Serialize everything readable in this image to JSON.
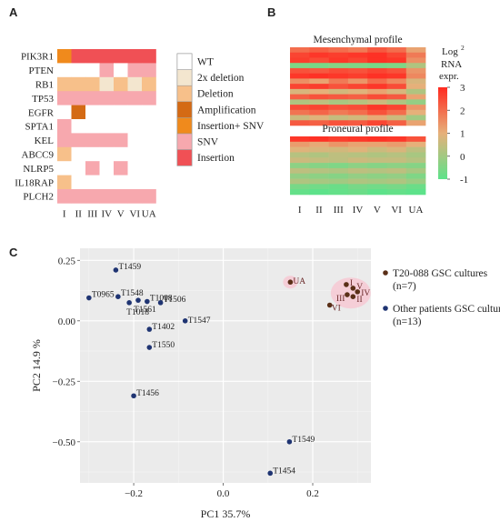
{
  "panels": {
    "a": "A",
    "b": "B",
    "c": "C"
  },
  "chart_data": [
    {
      "type": "heatmap",
      "panel": "A",
      "columns": [
        "I",
        "II",
        "III",
        "IV",
        "V",
        "VI",
        "UA"
      ],
      "rows": [
        "PIK3R1",
        "PTEN",
        "RB1",
        "TP53",
        "EGFR",
        "SPTA1",
        "KEL",
        "ABCC9",
        "NLRP5",
        "IL18RAP",
        "PLCH2"
      ],
      "legend": [
        {
          "key": "wt",
          "label": "WT",
          "color": "#ffffff"
        },
        {
          "key": "dd",
          "label": "2x deletion",
          "color": "#f3e6cf"
        },
        {
          "key": "del",
          "label": "Deletion",
          "color": "#f7c08a"
        },
        {
          "key": "amp",
          "label": "Amplification",
          "color": "#d46a14"
        },
        {
          "key": "ins_snv",
          "label": "Insertion+ SNV",
          "color": "#f08a1c"
        },
        {
          "key": "snv",
          "label": "SNV",
          "color": "#f7a8ae"
        },
        {
          "key": "ins",
          "label": "Insertion",
          "color": "#f05055"
        }
      ],
      "cells": [
        [
          "ins_snv",
          "ins",
          "ins",
          "ins",
          "ins",
          "ins",
          "ins"
        ],
        [
          "wt",
          "wt",
          "wt",
          "snv",
          "wt",
          "snv",
          "snv"
        ],
        [
          "del",
          "del",
          "del",
          "dd",
          "del",
          "dd",
          "del"
        ],
        [
          "snv",
          "snv",
          "snv",
          "snv",
          "snv",
          "snv",
          "snv"
        ],
        [
          "wt",
          "amp",
          "wt",
          "wt",
          "wt",
          "wt",
          "wt"
        ],
        [
          "snv",
          "wt",
          "wt",
          "wt",
          "wt",
          "wt",
          "wt"
        ],
        [
          "snv",
          "snv",
          "snv",
          "snv",
          "snv",
          "wt",
          "wt"
        ],
        [
          "del",
          "wt",
          "wt",
          "wt",
          "wt",
          "wt",
          "wt"
        ],
        [
          "wt",
          "wt",
          "snv",
          "wt",
          "snv",
          "wt",
          "wt"
        ],
        [
          "del",
          "wt",
          "wt",
          "wt",
          "wt",
          "wt",
          "wt"
        ],
        [
          "snv",
          "snv",
          "snv",
          "snv",
          "snv",
          "snv",
          "snv"
        ]
      ]
    },
    {
      "type": "heatmap",
      "panel": "B",
      "columns": [
        "I",
        "II",
        "III",
        "IV",
        "V",
        "VI",
        "UA"
      ],
      "blocks": [
        {
          "title": "Mesenchymal profile",
          "values": [
            [
              2.0,
              2.2,
              2.0,
              1.8,
              2.3,
              2.0,
              1.2
            ],
            [
              2.6,
              2.8,
              2.7,
              2.8,
              2.9,
              2.6,
              1.8
            ],
            [
              2.7,
              2.5,
              2.8,
              2.6,
              2.9,
              2.8,
              1.5
            ],
            [
              -0.5,
              -0.6,
              -0.4,
              -0.5,
              -0.6,
              -0.5,
              0.2
            ],
            [
              2.4,
              2.3,
              2.5,
              2.4,
              2.6,
              2.4,
              1.4
            ],
            [
              2.8,
              2.9,
              2.8,
              2.7,
              2.9,
              2.8,
              1.6
            ],
            [
              1.5,
              1.2,
              1.8,
              1.4,
              2.0,
              1.6,
              0.8
            ],
            [
              2.6,
              2.7,
              2.4,
              2.6,
              2.8,
              2.5,
              1.0
            ],
            [
              0.8,
              1.0,
              0.7,
              0.9,
              1.2,
              0.8,
              0.2
            ],
            [
              2.2,
              2.4,
              2.3,
              2.2,
              2.5,
              2.3,
              1.2
            ],
            [
              0.2,
              0.4,
              0.1,
              0.3,
              0.6,
              0.2,
              -0.2
            ],
            [
              2.5,
              2.6,
              2.4,
              2.5,
              2.8,
              2.6,
              1.4
            ],
            [
              1.9,
              2.1,
              1.8,
              2.0,
              2.4,
              2.0,
              1.0
            ],
            [
              0.6,
              0.9,
              0.5,
              0.7,
              1.1,
              0.6,
              0.0
            ],
            [
              2.3,
              2.2,
              2.4,
              2.3,
              2.6,
              2.2,
              1.2
            ]
          ]
        },
        {
          "title": "Proneural profile",
          "values": [
            [
              2.8,
              2.9,
              2.7,
              2.8,
              2.9,
              2.8,
              2.4
            ],
            [
              1.3,
              1.1,
              1.4,
              1.2,
              1.2,
              1.3,
              1.0
            ],
            [
              0.9,
              0.8,
              0.7,
              0.9,
              0.6,
              0.8,
              0.4
            ],
            [
              0.3,
              0.2,
              0.4,
              0.3,
              0.2,
              0.3,
              0.1
            ],
            [
              0.6,
              0.5,
              0.4,
              0.6,
              0.5,
              0.5,
              0.3
            ],
            [
              -0.3,
              -0.4,
              -0.5,
              -0.3,
              -0.4,
              -0.3,
              -0.4
            ],
            [
              0.4,
              0.3,
              0.2,
              0.4,
              0.3,
              0.4,
              0.1
            ],
            [
              -0.2,
              -0.3,
              -0.4,
              -0.2,
              -0.3,
              -0.2,
              -0.5
            ],
            [
              0.2,
              0.1,
              0.0,
              0.2,
              0.1,
              0.2,
              -0.1
            ],
            [
              -0.6,
              -0.7,
              -0.8,
              -0.6,
              -0.7,
              -0.6,
              -0.8
            ],
            [
              -0.9,
              -1.0,
              -0.9,
              -0.8,
              -1.0,
              -0.9,
              -1.0
            ]
          ]
        }
      ],
      "colorbar": {
        "title": [
          "Log",
          "2",
          "RNA",
          "expr."
        ],
        "ticks": [
          3,
          2,
          1,
          0,
          -1
        ],
        "range": [
          -1,
          3
        ],
        "colors": [
          "#5de28a",
          "#e6b07a",
          "#ff2a20"
        ]
      }
    },
    {
      "type": "scatter",
      "panel": "C",
      "xlabel": "PC1 35.7%",
      "ylabel": "PC2 14.9 %",
      "xlim": [
        -0.32,
        0.33
      ],
      "ylim": [
        -0.67,
        0.3
      ],
      "xticks": [
        -0.2,
        0.0,
        0.2
      ],
      "xtick_labels": [
        "−0.2",
        "0.0",
        "0.2"
      ],
      "yticks": [
        0.25,
        0.0,
        -0.25,
        -0.5
      ],
      "ytick_labels": [
        "0.25",
        "0.00",
        "−0.25",
        "−0.50"
      ],
      "grid": true,
      "legend_position": "right",
      "series": [
        {
          "name": "T20-088 GSC cultures (n=7)",
          "color": "#5a2f17",
          "points": [
            {
              "label": "UA",
              "x": 0.15,
              "y": 0.16
            },
            {
              "label": "I",
              "x": 0.275,
              "y": 0.15
            },
            {
              "label": "V",
              "x": 0.29,
              "y": 0.135
            },
            {
              "label": "IV",
              "x": 0.3,
              "y": 0.12
            },
            {
              "label": "II",
              "x": 0.29,
              "y": 0.1
            },
            {
              "label": "III",
              "x": 0.277,
              "y": 0.108
            },
            {
              "label": "VI",
              "x": 0.238,
              "y": 0.065
            }
          ]
        },
        {
          "name": "Other patients GSC cultures (n=13)",
          "color": "#1f3472",
          "points": [
            {
              "label": "T1459",
              "x": -0.24,
              "y": 0.21
            },
            {
              "label": "T0965",
              "x": -0.3,
              "y": 0.095
            },
            {
              "label": "T1548",
              "x": -0.235,
              "y": 0.1
            },
            {
              "label": "T1018",
              "x": -0.21,
              "y": 0.075
            },
            {
              "label": "T1561",
              "x": -0.19,
              "y": 0.085
            },
            {
              "label": "T1008",
              "x": -0.17,
              "y": 0.08
            },
            {
              "label": "T1506",
              "x": -0.14,
              "y": 0.075
            },
            {
              "label": "T1402",
              "x": -0.165,
              "y": -0.035
            },
            {
              "label": "T1547",
              "x": -0.085,
              "y": 0.0
            },
            {
              "label": "T1550",
              "x": -0.165,
              "y": -0.11
            },
            {
              "label": "T1456",
              "x": -0.2,
              "y": -0.31
            },
            {
              "label": "T1549",
              "x": 0.148,
              "y": -0.5
            },
            {
              "label": "T1454",
              "x": 0.105,
              "y": -0.63
            }
          ]
        }
      ]
    }
  ]
}
